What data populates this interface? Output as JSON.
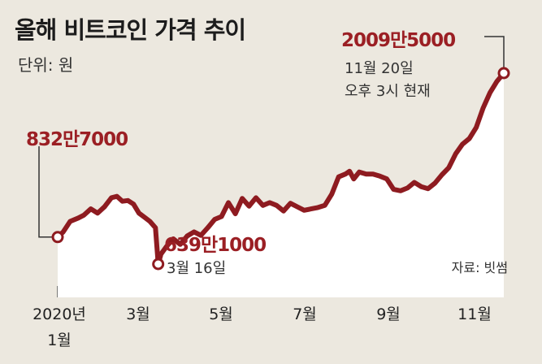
{
  "title": "올해 비트코인 가격 추이",
  "unit_label": "단위: 원",
  "source": "자료: 빗썸",
  "annotations": {
    "start": {
      "value_label": "832만7000"
    },
    "low": {
      "value_label": "639만1000",
      "date_label": "3월 16일"
    },
    "end": {
      "value_label": "2009만5000",
      "date_line1": "11월 20일",
      "date_line2": "오후 3시 현재"
    }
  },
  "x_tick_labels": [
    "2020년",
    "1월",
    "3월",
    "5월",
    "7월",
    "9월",
    "11월"
  ],
  "colors": {
    "line": "#8e1b20",
    "area": "#ffffff",
    "background": "#ece8df",
    "accent_text": "#9b1f24"
  },
  "chart_data": {
    "type": "line",
    "title": "올해 비트코인 가격 추이",
    "ylabel": "단위: 원",
    "x_unit": "day of year 2020",
    "y_unit": "만원",
    "ylim": [
      400,
      2100
    ],
    "categories": [
      "2020년 1월",
      "3월",
      "5월",
      "7월",
      "9월",
      "11월"
    ],
    "x": [
      1,
      5,
      10,
      16,
      20,
      25,
      30,
      35,
      40,
      44,
      48,
      52,
      56,
      60,
      64,
      68,
      72,
      74,
      76,
      80,
      85,
      90,
      95,
      100,
      105,
      110,
      115,
      120,
      125,
      130,
      135,
      140,
      145,
      150,
      155,
      160,
      165,
      170,
      175,
      180,
      185,
      190,
      195,
      200,
      205,
      210,
      213,
      216,
      220,
      225,
      230,
      235,
      240,
      245,
      250,
      255,
      260,
      265,
      270,
      275,
      280,
      285,
      290,
      295,
      300,
      305,
      310,
      315,
      320,
      325
    ],
    "values": [
      832.7,
      870,
      945,
      970,
      990,
      1035,
      1005,
      1050,
      1115,
      1125,
      1090,
      1095,
      1070,
      1005,
      975,
      945,
      900,
      639.1,
      710,
      765,
      820,
      780,
      840,
      870,
      845,
      900,
      960,
      980,
      1080,
      1000,
      1110,
      1055,
      1115,
      1060,
      1080,
      1060,
      1020,
      1075,
      1050,
      1025,
      1035,
      1045,
      1060,
      1140,
      1265,
      1285,
      1305,
      1250,
      1300,
      1285,
      1285,
      1270,
      1250,
      1175,
      1165,
      1185,
      1225,
      1195,
      1180,
      1220,
      1280,
      1330,
      1430,
      1500,
      1540,
      1620,
      1760,
      1870,
      1950,
      2009.5
    ]
  }
}
